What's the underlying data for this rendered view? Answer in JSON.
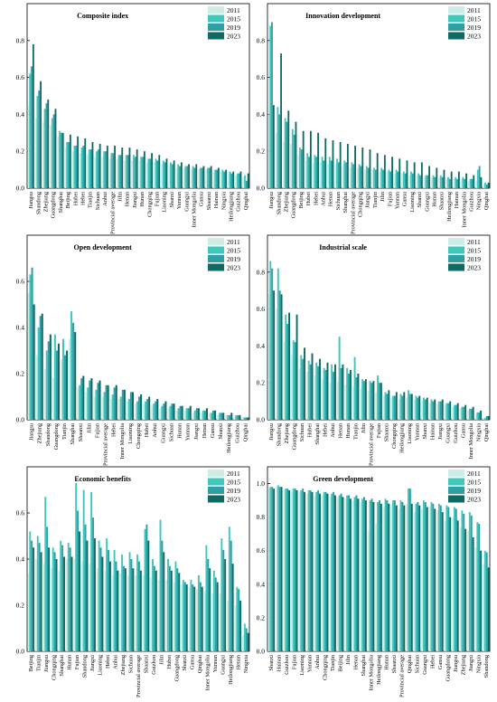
{
  "chart_data": [
    {
      "type": "bar",
      "title": "Composite index",
      "ylim": [
        0,
        1.0
      ],
      "yticks": [
        "0.0",
        "0.2",
        "0.4",
        "0.6",
        "0.8"
      ],
      "categories": [
        "Jiangsu",
        "Shandong",
        "Zhejiang",
        "Guangdong",
        "Shanghai",
        "Beijing",
        "Hubei",
        "Hebei",
        "Tianjin",
        "Sichuan",
        "Anhui",
        "Provincial average",
        "Jilin",
        "Henan",
        "Jiangxi",
        "Hunan",
        "Chongqing",
        "Fujian",
        "Liaoning",
        "Shanxi",
        "Yunnan",
        "Guangxi",
        "Inner Mongolia",
        "Gansu",
        "Shaanxi",
        "Hainan",
        "Ningxia",
        "Heilongjiang",
        "Guizhou",
        "Qinghai"
      ],
      "series": [
        {
          "name": "2011",
          "values": [
            0.45,
            0.38,
            0.36,
            0.34,
            0.28,
            0.22,
            0.2,
            0.19,
            0.18,
            0.17,
            0.17,
            0.16,
            0.16,
            0.15,
            0.15,
            0.15,
            0.14,
            0.14,
            0.13,
            0.12,
            0.11,
            0.11,
            0.1,
            0.1,
            0.1,
            0.09,
            0.09,
            0.08,
            0.07,
            0.06
          ]
        },
        {
          "name": "2015",
          "values": [
            0.62,
            0.5,
            0.43,
            0.38,
            0.31,
            0.25,
            0.23,
            0.22,
            0.21,
            0.2,
            0.2,
            0.19,
            0.18,
            0.18,
            0.18,
            0.17,
            0.16,
            0.16,
            0.15,
            0.14,
            0.13,
            0.12,
            0.12,
            0.11,
            0.11,
            0.1,
            0.1,
            0.09,
            0.08,
            0.07
          ]
        },
        {
          "name": "2019",
          "values": [
            0.66,
            0.53,
            0.46,
            0.4,
            0.3,
            0.25,
            0.23,
            0.23,
            0.21,
            0.21,
            0.2,
            0.19,
            0.18,
            0.18,
            0.17,
            0.17,
            0.16,
            0.15,
            0.14,
            0.13,
            0.12,
            0.12,
            0.11,
            0.11,
            0.11,
            0.1,
            0.09,
            0.08,
            0.08,
            0.04
          ]
        },
        {
          "name": "2023",
          "values": [
            0.78,
            0.58,
            0.48,
            0.43,
            0.3,
            0.29,
            0.28,
            0.27,
            0.25,
            0.24,
            0.23,
            0.23,
            0.22,
            0.22,
            0.21,
            0.2,
            0.19,
            0.18,
            0.16,
            0.15,
            0.14,
            0.13,
            0.13,
            0.12,
            0.12,
            0.11,
            0.1,
            0.09,
            0.09,
            0.08
          ]
        }
      ]
    },
    {
      "type": "bar",
      "title": "Innovation development",
      "ylim": [
        0,
        1.0
      ],
      "yticks": [
        "0.0",
        "0.2",
        "0.4",
        "0.6",
        "0.8"
      ],
      "categories": [
        "Jiangsu",
        "Shandong",
        "Zhejiang",
        "Guangdong",
        "Beijing",
        "Hubei",
        "Hebei",
        "Anhui",
        "Henan",
        "Sichuan",
        "Shanghai",
        "Provincial average",
        "Chongqing",
        "Jiangxi",
        "Tianjin",
        "Jilin",
        "Fujian",
        "Yunnan",
        "Gansu",
        "Liaoning",
        "Shanxi",
        "Guangxi",
        "Hunan",
        "Shaanxi",
        "Heilongjiang",
        "Hainan",
        "Inner Mongolia",
        "Guizhou",
        "Ningxia",
        "Qinghai"
      ],
      "series": [
        {
          "name": "2011",
          "values": [
            0.4,
            0.3,
            0.25,
            0.24,
            0.18,
            0.15,
            0.14,
            0.14,
            0.13,
            0.13,
            0.12,
            0.11,
            0.11,
            0.1,
            0.1,
            0.09,
            0.09,
            0.08,
            0.08,
            0.07,
            0.07,
            0.06,
            0.06,
            0.06,
            0.05,
            0.05,
            0.05,
            0.04,
            0.04,
            0.02
          ]
        },
        {
          "name": "2015",
          "values": [
            0.88,
            0.44,
            0.38,
            0.32,
            0.22,
            0.19,
            0.18,
            0.17,
            0.17,
            0.16,
            0.15,
            0.14,
            0.13,
            0.12,
            0.11,
            0.11,
            0.1,
            0.1,
            0.09,
            0.09,
            0.08,
            0.07,
            0.07,
            0.07,
            0.06,
            0.06,
            0.06,
            0.05,
            0.1,
            0.03
          ]
        },
        {
          "name": "2019",
          "values": [
            0.9,
            0.4,
            0.36,
            0.29,
            0.21,
            0.17,
            0.17,
            0.15,
            0.15,
            0.14,
            0.14,
            0.13,
            0.12,
            0.11,
            0.1,
            0.1,
            0.09,
            0.09,
            0.08,
            0.08,
            0.07,
            0.07,
            0.06,
            0.06,
            0.05,
            0.05,
            0.05,
            0.05,
            0.12,
            0.02
          ]
        },
        {
          "name": "2023",
          "values": [
            0.45,
            0.73,
            0.42,
            0.36,
            0.31,
            0.31,
            0.3,
            0.27,
            0.26,
            0.25,
            0.24,
            0.23,
            0.22,
            0.21,
            0.19,
            0.18,
            0.17,
            0.16,
            0.15,
            0.14,
            0.14,
            0.12,
            0.11,
            0.1,
            0.09,
            0.09,
            0.08,
            0.07,
            0.06,
            0.03
          ]
        }
      ]
    },
    {
      "type": "bar",
      "title": "Open development",
      "ylim": [
        0,
        0.8
      ],
      "yticks": [
        "0.0",
        "0.2",
        "0.4",
        "0.6"
      ],
      "categories": [
        "Jiangsu",
        "Zhejiang",
        "Shandong",
        "Guangdong",
        "Tianjin",
        "Shanghai",
        "Shaanxi",
        "Jilin",
        "Fujian",
        "Provincial average",
        "Hebei",
        "Inner Mongolia",
        "Liaoning",
        "Chongqing",
        "Hubei",
        "Anhui",
        "Guangxi",
        "Sichuan",
        "Hunan",
        "Yunnan",
        "Jiangxi",
        "Henan",
        "Gansu",
        "Shanxi",
        "Heilongjiang",
        "Guizhou",
        "Qinghai"
      ],
      "series": [
        {
          "name": "2011",
          "values": [
            0.55,
            0.28,
            0.22,
            0.18,
            0.26,
            0.35,
            0.14,
            0.12,
            0.1,
            0.1,
            0.09,
            0.09,
            0.08,
            0.07,
            0.07,
            0.06,
            0.05,
            0.05,
            0.04,
            0.04,
            0.03,
            0.03,
            0.03,
            0.02,
            0.02,
            0.01,
            0.01
          ]
        },
        {
          "name": "2015",
          "values": [
            0.63,
            0.4,
            0.3,
            0.37,
            0.35,
            0.47,
            0.15,
            0.14,
            0.13,
            0.12,
            0.11,
            0.1,
            0.09,
            0.08,
            0.08,
            0.07,
            0.06,
            0.06,
            0.05,
            0.05,
            0.04,
            0.04,
            0.03,
            0.03,
            0.02,
            0.02,
            0.01
          ]
        },
        {
          "name": "2019",
          "values": [
            0.66,
            0.45,
            0.34,
            0.3,
            0.28,
            0.42,
            0.18,
            0.17,
            0.16,
            0.15,
            0.14,
            0.13,
            0.12,
            0.1,
            0.09,
            0.08,
            0.07,
            0.07,
            0.06,
            0.05,
            0.05,
            0.04,
            0.04,
            0.03,
            0.02,
            0.02,
            0.01
          ]
        },
        {
          "name": "2023",
          "values": [
            0.5,
            0.46,
            0.37,
            0.33,
            0.3,
            0.38,
            0.19,
            0.18,
            0.17,
            0.15,
            0.15,
            0.13,
            0.12,
            0.11,
            0.1,
            0.09,
            0.08,
            0.07,
            0.06,
            0.06,
            0.05,
            0.05,
            0.04,
            0.03,
            0.03,
            0.02,
            0.01
          ]
        }
      ]
    },
    {
      "type": "bar",
      "title": "Industrial scale",
      "ylim": [
        0,
        1.0
      ],
      "yticks": [
        "0.0",
        "0.2",
        "0.4",
        "0.6",
        "0.8"
      ],
      "categories": [
        "Jiangsu",
        "Shandong",
        "Zhejiang",
        "Guangdong",
        "Sichuan",
        "Hubei",
        "Shanghai",
        "Hebei",
        "Anhui",
        "Henan",
        "Hunan",
        "Tianjin",
        "Jilin",
        "Provincial average",
        "Fujian",
        "Shaanxi",
        "Chongqing",
        "Heilongjiang",
        "Liaoning",
        "Yunnan",
        "Shanxi",
        "Hainan",
        "Jiangxi",
        "Guangxi",
        "Guizhou",
        "Gansu",
        "Inner Mongolia",
        "Ningxia",
        "Qinghai"
      ],
      "series": [
        {
          "name": "2011",
          "values": [
            0.68,
            0.6,
            0.42,
            0.35,
            0.28,
            0.26,
            0.24,
            0.22,
            0.2,
            0.21,
            0.19,
            0.18,
            0.17,
            0.16,
            0.15,
            0.13,
            0.12,
            0.11,
            0.12,
            0.11,
            0.1,
            0.09,
            0.09,
            0.08,
            0.07,
            0.06,
            0.05,
            0.03,
            0.01
          ]
        },
        {
          "name": "2015",
          "values": [
            0.86,
            0.82,
            0.57,
            0.43,
            0.35,
            0.32,
            0.31,
            0.28,
            0.3,
            0.45,
            0.28,
            0.34,
            0.22,
            0.21,
            0.24,
            0.15,
            0.13,
            0.14,
            0.16,
            0.13,
            0.12,
            0.11,
            0.1,
            0.09,
            0.08,
            0.07,
            0.06,
            0.04,
            0.01
          ]
        },
        {
          "name": "2019",
          "values": [
            0.82,
            0.7,
            0.52,
            0.42,
            0.33,
            0.3,
            0.29,
            0.27,
            0.26,
            0.28,
            0.25,
            0.23,
            0.21,
            0.2,
            0.2,
            0.14,
            0.13,
            0.13,
            0.14,
            0.12,
            0.11,
            0.1,
            0.1,
            0.09,
            0.08,
            0.07,
            0.06,
            0.04,
            0.02
          ]
        },
        {
          "name": "2023",
          "values": [
            0.7,
            0.68,
            0.58,
            0.57,
            0.39,
            0.36,
            0.33,
            0.31,
            0.3,
            0.3,
            0.27,
            0.25,
            0.22,
            0.21,
            0.2,
            0.16,
            0.15,
            0.15,
            0.14,
            0.13,
            0.12,
            0.11,
            0.11,
            0.1,
            0.09,
            0.08,
            0.07,
            0.05,
            0.02
          ]
        }
      ]
    },
    {
      "type": "bar",
      "title": "Economic benefits",
      "ylim": [
        0,
        0.8
      ],
      "yticks": [
        "0.0",
        "0.2",
        "0.4",
        "0.6"
      ],
      "categories": [
        "Beijing",
        "Tianjin",
        "Jiangsu",
        "Chongqing",
        "Shanghai",
        "Hunan",
        "Fujian",
        "Shandong",
        "Jiangxi",
        "Liaoning",
        "Hebei",
        "Anhui",
        "Zhejiang",
        "Sichuan",
        "Provincial average",
        "Shaanxi",
        "Guizhou",
        "Jilin",
        "Hubei",
        "Guangdong",
        "Shanxi",
        "Gansu",
        "Qinghai",
        "Inner Mongolia",
        "Yunnan",
        "Guangxi",
        "Heilongjiang",
        "Henan",
        "Ningxia"
      ],
      "series": [
        {
          "name": "2011",
          "values": [
            0.34,
            0.4,
            0.38,
            0.36,
            0.35,
            0.4,
            0.4,
            0.39,
            0.38,
            0.36,
            0.35,
            0.33,
            0.34,
            0.33,
            0.33,
            0.33,
            0.32,
            0.31,
            0.31,
            0.3,
            0.29,
            0.28,
            0.27,
            0.26,
            0.25,
            0.25,
            0.22,
            0.2,
            0.07
          ]
        },
        {
          "name": "2015",
          "values": [
            0.52,
            0.5,
            0.67,
            0.45,
            0.48,
            0.47,
            0.73,
            0.7,
            0.69,
            0.48,
            0.49,
            0.44,
            0.42,
            0.43,
            0.42,
            0.53,
            0.4,
            0.57,
            0.4,
            0.39,
            0.31,
            0.31,
            0.33,
            0.46,
            0.35,
            0.49,
            0.54,
            0.28,
            0.12
          ]
        },
        {
          "name": "2019",
          "values": [
            0.48,
            0.47,
            0.54,
            0.43,
            0.46,
            0.45,
            0.61,
            0.55,
            0.58,
            0.45,
            0.44,
            0.39,
            0.37,
            0.4,
            0.39,
            0.55,
            0.37,
            0.48,
            0.37,
            0.36,
            0.3,
            0.29,
            0.3,
            0.4,
            0.32,
            0.44,
            0.48,
            0.27,
            0.1
          ]
        },
        {
          "name": "2023",
          "values": [
            0.45,
            0.43,
            0.45,
            0.4,
            0.41,
            0.41,
            0.52,
            0.48,
            0.49,
            0.41,
            0.39,
            0.35,
            0.36,
            0.36,
            0.35,
            0.48,
            0.35,
            0.43,
            0.35,
            0.34,
            0.29,
            0.28,
            0.28,
            0.36,
            0.3,
            0.4,
            0.38,
            0.22,
            0.08
          ]
        }
      ]
    },
    {
      "type": "bar",
      "title": "Green development",
      "ylim": [
        0,
        1.1
      ],
      "yticks": [
        "0.0",
        "0.2",
        "0.4",
        "0.6",
        "0.8",
        "1.0"
      ],
      "categories": [
        "Shanxi",
        "Hainan",
        "Guizhou",
        "Fujian",
        "Liaoning",
        "Yunnan",
        "Anhui",
        "Chongqing",
        "Tianjin",
        "Beijing",
        "Jilin",
        "Henan",
        "Shanghai",
        "Inner Mongolia",
        "Heilongjiang",
        "Hunan",
        "Shaanxi",
        "Provincial average",
        "Qinghai",
        "Sichuan",
        "Guangxi",
        "Hebei",
        "Gansu",
        "Guangdong",
        "Jiangsu",
        "Zhejiang",
        "Jiangxi",
        "Ningxia",
        "Shandong"
      ],
      "series": [
        {
          "name": "2011",
          "values": [
            0.97,
            0.98,
            0.96,
            0.95,
            0.95,
            0.94,
            0.93,
            0.93,
            0.92,
            0.92,
            0.91,
            0.9,
            0.89,
            0.72,
            0.76,
            0.86,
            0.87,
            0.85,
            0.88,
            0.83,
            0.85,
            0.86,
            0.84,
            0.78,
            0.8,
            0.74,
            0.72,
            0.62,
            0.52
          ]
        },
        {
          "name": "2015",
          "values": [
            0.98,
            0.99,
            0.97,
            0.97,
            0.96,
            0.96,
            0.95,
            0.95,
            0.94,
            0.93,
            0.93,
            0.92,
            0.91,
            0.9,
            0.89,
            0.91,
            0.9,
            0.9,
            0.97,
            0.88,
            0.9,
            0.89,
            0.88,
            0.87,
            0.86,
            0.84,
            0.83,
            0.77,
            0.6
          ]
        },
        {
          "name": "2019",
          "values": [
            0.98,
            0.98,
            0.97,
            0.97,
            0.97,
            0.96,
            0.96,
            0.95,
            0.95,
            0.94,
            0.93,
            0.93,
            0.92,
            0.91,
            0.9,
            0.9,
            0.9,
            0.89,
            0.97,
            0.89,
            0.89,
            0.88,
            0.87,
            0.86,
            0.85,
            0.82,
            0.81,
            0.76,
            0.59
          ]
        },
        {
          "name": "2023",
          "values": [
            0.97,
            0.98,
            0.96,
            0.96,
            0.95,
            0.95,
            0.94,
            0.94,
            0.93,
            0.92,
            0.91,
            0.91,
            0.9,
            0.89,
            0.88,
            0.88,
            0.87,
            0.87,
            0.88,
            0.87,
            0.86,
            0.85,
            0.83,
            0.8,
            0.78,
            0.73,
            0.68,
            0.6,
            0.5
          ]
        }
      ]
    }
  ],
  "legend": {
    "labels": [
      "2011",
      "2015",
      "2019",
      "2023"
    ],
    "colors": [
      "#cdeee6",
      "#3ec7bd",
      "#2f9fa5",
      "#0e6b63"
    ]
  }
}
